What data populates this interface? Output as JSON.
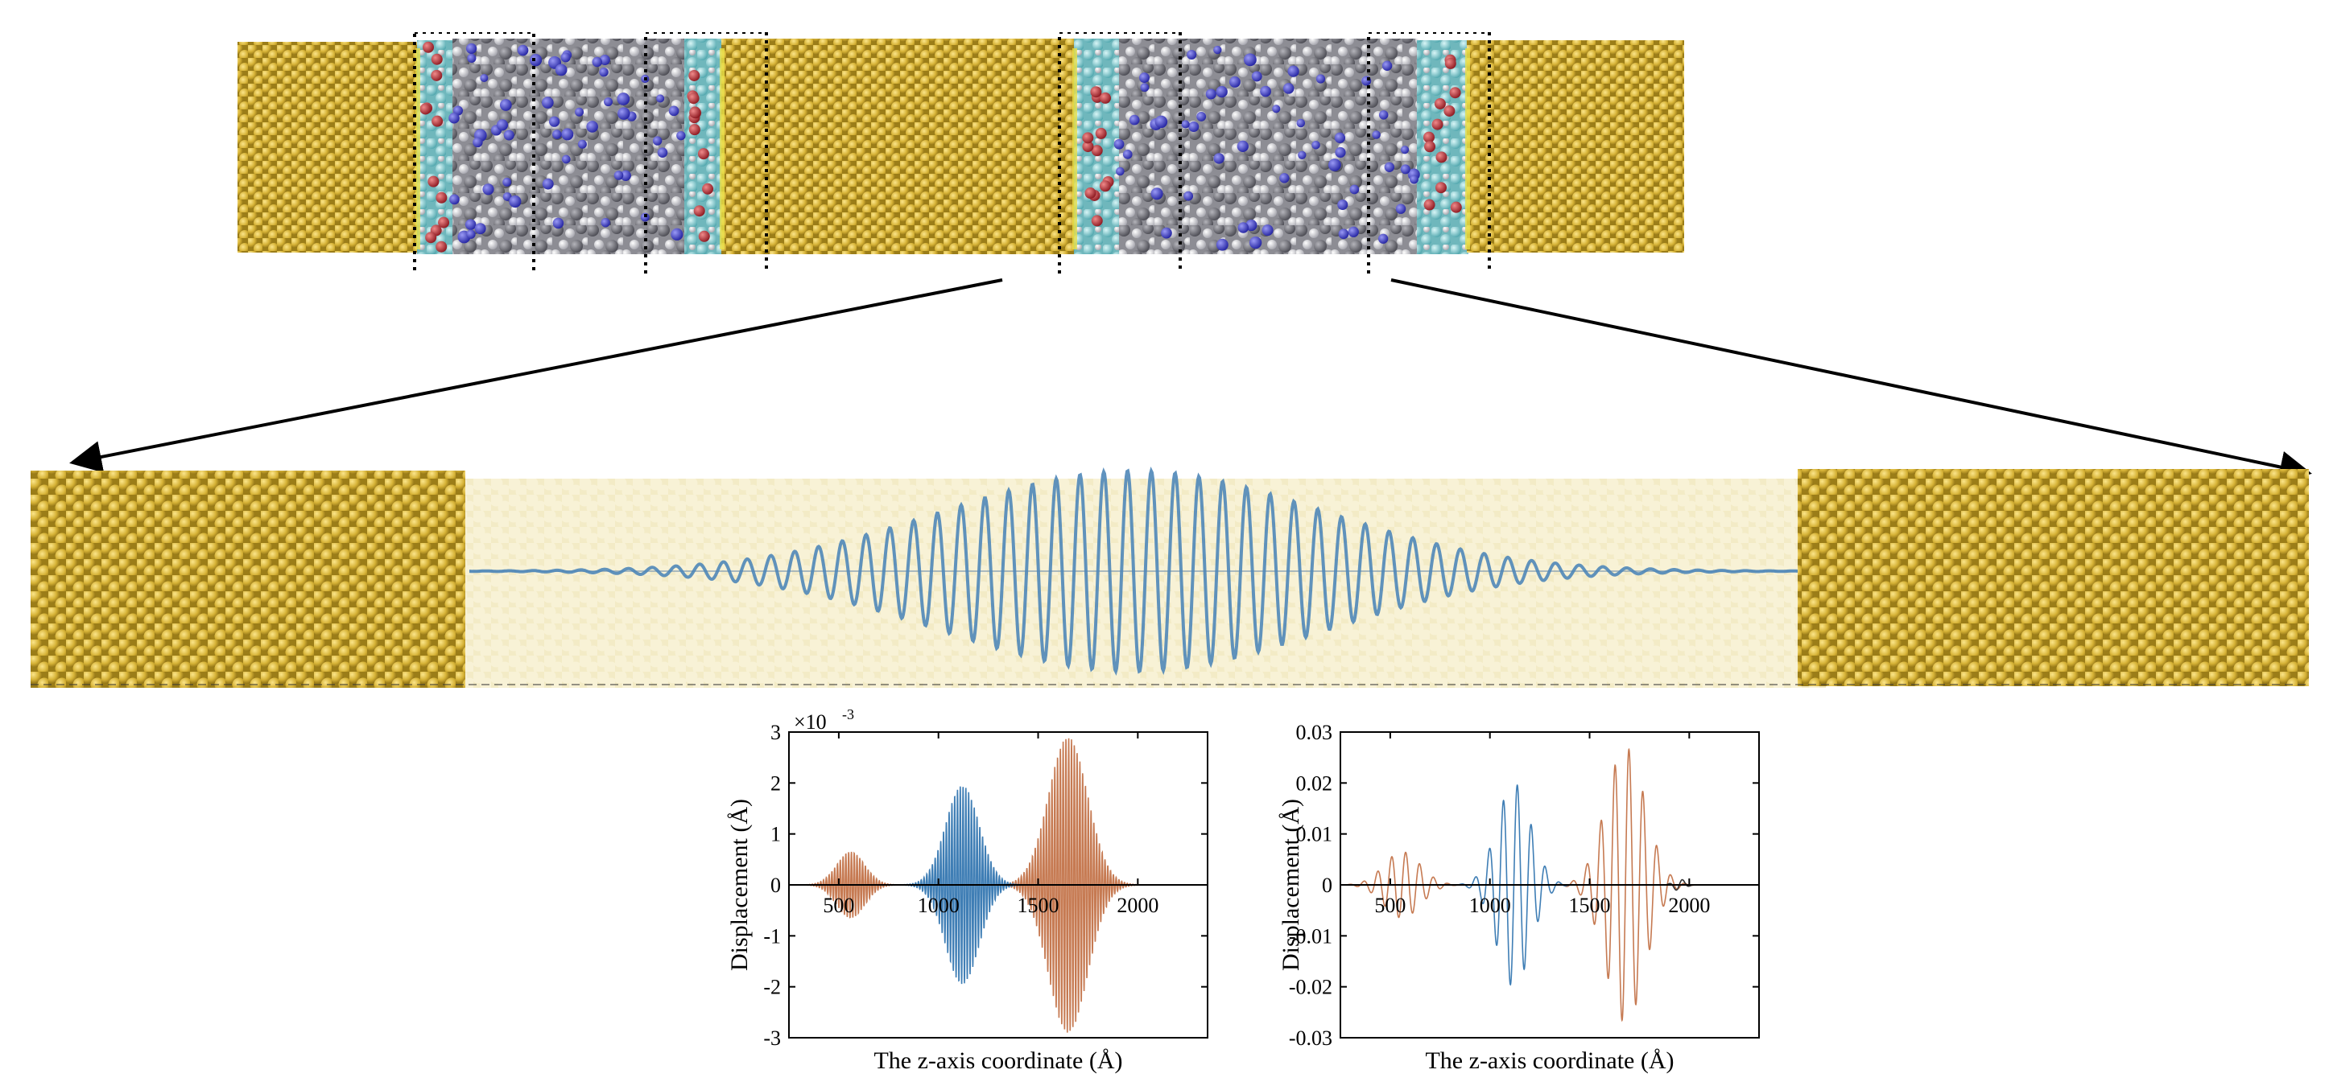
{
  "colors": {
    "gold": "#d6b236",
    "gold_dark": "#a8871c",
    "gold_light": "#f1d969",
    "cyan": "#7ccfd4",
    "red": "#c8323c",
    "blue": "#3c3cd2",
    "gray": "#7d7d85",
    "white_atom": "#e6e6ea",
    "wave_blue": "#3f7eb5",
    "wave_orange": "#c67a52",
    "faded_panel": "#f6f0cf"
  },
  "top_structure": {
    "description_icon": "molecular-structure-icon",
    "regions": [
      "gold-lead-left",
      "interface-box-1",
      "molecule-layer-1",
      "interface-box-2",
      "gold-middle",
      "interface-box-3",
      "molecule-layer-2",
      "interface-box-4",
      "gold-lead-right"
    ]
  },
  "zoom_strip": {
    "wave_envelope_label": ""
  },
  "chart_data": [
    {
      "type": "line",
      "id": "left-plot",
      "title": "",
      "xlabel": "The z-axis coordinate (Å)",
      "ylabel": "Displacement (Å)",
      "exponent_label": "×10",
      "exponent_power": "-3",
      "xlim": [
        250,
        2350
      ],
      "ylim": [
        -3,
        3
      ],
      "xticks": [
        500,
        1000,
        1500,
        2000
      ],
      "xtick_labels": [
        "500",
        "1000",
        "1500",
        "2000"
      ],
      "yticks": [
        3,
        2,
        1,
        0,
        -1,
        -2,
        -3
      ],
      "ytick_labels": [
        "3",
        "2",
        "1",
        "0",
        "-1",
        "-2",
        "-3"
      ],
      "series": [
        {
          "color": "#c67a52",
          "packets": [
            {
              "center": 560,
              "sigma": 100,
              "amplitude": 0.65,
              "period": 14
            },
            {
              "center": 1650,
              "sigma": 140,
              "amplitude": 2.9,
              "period": 14
            }
          ]
        },
        {
          "color": "#3f7eb5",
          "packets": [
            {
              "center": 1120,
              "sigma": 120,
              "amplitude": 1.95,
              "period": 14
            }
          ]
        }
      ]
    },
    {
      "type": "line",
      "id": "right-plot",
      "title": "",
      "xlabel": "The z-axis coordinate (Å)",
      "ylabel": "Displacement (Å)",
      "xlim": [
        250,
        2350
      ],
      "ylim": [
        -0.03,
        0.03
      ],
      "xticks": [
        500,
        1000,
        1500,
        2000
      ],
      "xtick_labels": [
        "500",
        "1000",
        "1500",
        "2000"
      ],
      "yticks": [
        0.03,
        0.02,
        0.01,
        0,
        -0.01,
        -0.02,
        -0.03
      ],
      "ytick_labels": [
        "0.03",
        "0.02",
        "0.01",
        "0",
        "-0.01",
        "-0.02",
        "-0.03"
      ],
      "series": [
        {
          "color": "#c67a52",
          "packets": [
            {
              "center": 560,
              "sigma": 130,
              "amplitude": 0.0065,
              "period": 70
            },
            {
              "center": 1680,
              "sigma": 140,
              "amplitude": 0.027,
              "period": 70
            }
          ]
        },
        {
          "color": "#3f7eb5",
          "packets": [
            {
              "center": 1120,
              "sigma": 120,
              "amplitude": 0.02,
              "period": 70
            }
          ]
        },
        {
          "color": "#333333",
          "packets": [
            {
              "center": 1950,
              "sigma": 40,
              "amplitude": 0.0012,
              "period": 70
            }
          ]
        }
      ]
    }
  ]
}
